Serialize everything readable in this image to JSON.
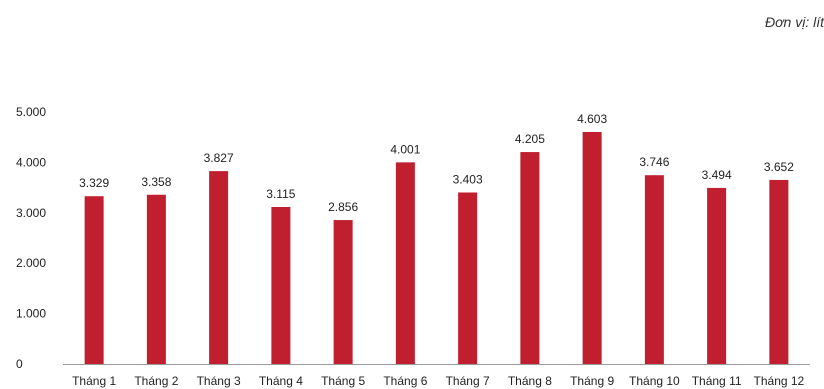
{
  "unit_note": "Đơn vị: lít",
  "chart_data": {
    "type": "bar",
    "categories": [
      "Tháng 1",
      "Tháng 2",
      "Tháng 3",
      "Tháng 4",
      "Tháng 5",
      "Tháng 6",
      "Tháng 7",
      "Tháng 8",
      "Tháng 9",
      "Tháng 10",
      "Tháng 11",
      "Tháng 12"
    ],
    "values": [
      3329,
      3358,
      3827,
      3115,
      2856,
      4001,
      3403,
      4205,
      4603,
      3746,
      3494,
      3652
    ],
    "value_labels": [
      "3.329",
      "3.358",
      "3.827",
      "3.115",
      "2.856",
      "4.001",
      "3.403",
      "4.205",
      "4.603",
      "3.746",
      "3.494",
      "3.652"
    ],
    "y_ticks": [
      0,
      1000,
      2000,
      3000,
      4000,
      5000
    ],
    "y_tick_labels": [
      "0",
      "1.000",
      "2.000",
      "3.000",
      "4.000",
      "5.000"
    ],
    "ylim": [
      0,
      5000
    ],
    "title": "",
    "xlabel": "",
    "ylabel": "",
    "grid": false,
    "bar_color": "#c01f2f"
  }
}
